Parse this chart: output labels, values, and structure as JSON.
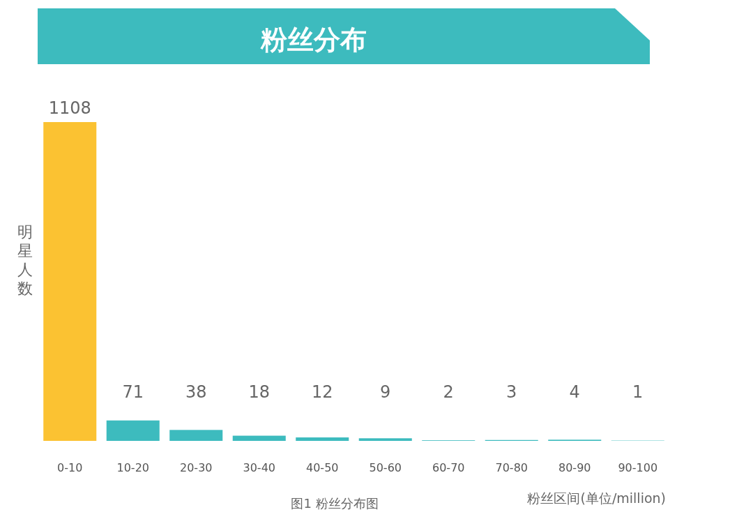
{
  "chart_data": {
    "type": "bar",
    "title": "粉丝分布",
    "ylabel": "明星人数",
    "xlabel": "粉丝区间(单位/million)",
    "annotations": [
      "图1 粉丝分布图"
    ],
    "categories": [
      "0-10",
      "10-20",
      "20-30",
      "30-40",
      "40-50",
      "50-60",
      "60-70",
      "70-80",
      "80-90",
      "90-100"
    ],
    "values": [
      1108,
      71,
      38,
      18,
      12,
      9,
      2,
      3,
      4,
      1
    ],
    "colors": [
      "#fbc232",
      "#3dbbbe",
      "#3dbbbe",
      "#3dbbbe",
      "#3dbbbe",
      "#3dbbbe",
      "#3dbbbe",
      "#3dbbbe",
      "#3dbbbe",
      "#3dbbbe"
    ],
    "data_labels": true
  }
}
